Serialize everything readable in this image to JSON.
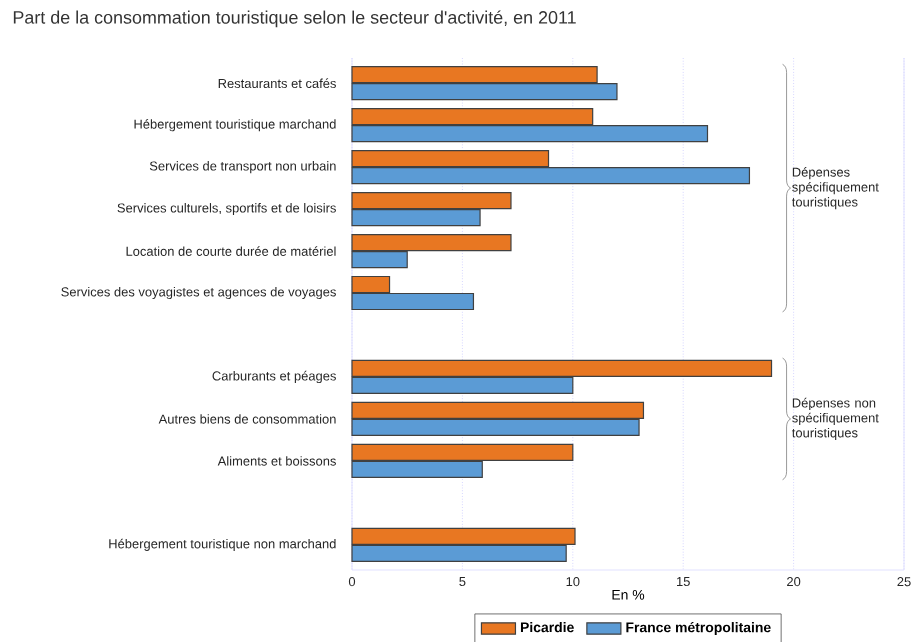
{
  "chart_data": {
    "type": "bar",
    "orientation": "horizontal",
    "title": "Part de la consommation touristique selon le secteur d'activité, en 2011",
    "xlabel": "En %",
    "categories": [
      "Restaurants et cafés",
      "Hébergement touristique marchand",
      "Services de transport non urbain",
      "Services culturels, sportifs et de loisirs",
      "Location de courte durée de matériel",
      "Services des voyagistes et agences de voyages",
      null,
      "Carburants et péages",
      "Autres biens de consommation",
      "Aliments et boissons",
      null,
      "Hébergement touristique non marchand"
    ],
    "series": [
      {
        "name": "Picardie",
        "color": "#e87722",
        "values": [
          11.1,
          10.9,
          8.9,
          7.2,
          7.2,
          1.7,
          null,
          19.0,
          13.2,
          10.0,
          null,
          10.1
        ]
      },
      {
        "name": "France métropolitaine",
        "color": "#5b9bd5",
        "values": [
          12.0,
          16.1,
          18.0,
          5.8,
          2.5,
          5.5,
          null,
          10.0,
          13.0,
          5.9,
          null,
          9.7
        ]
      }
    ],
    "xlim": [
      0,
      25
    ],
    "xticks": [
      0,
      5,
      10,
      15,
      20,
      25
    ],
    "grid": "x",
    "legend": "bottom",
    "annotations": [
      "Dépenses spécifiquement touristiques",
      "Dépenses non spécifiquement touristiques"
    ]
  }
}
